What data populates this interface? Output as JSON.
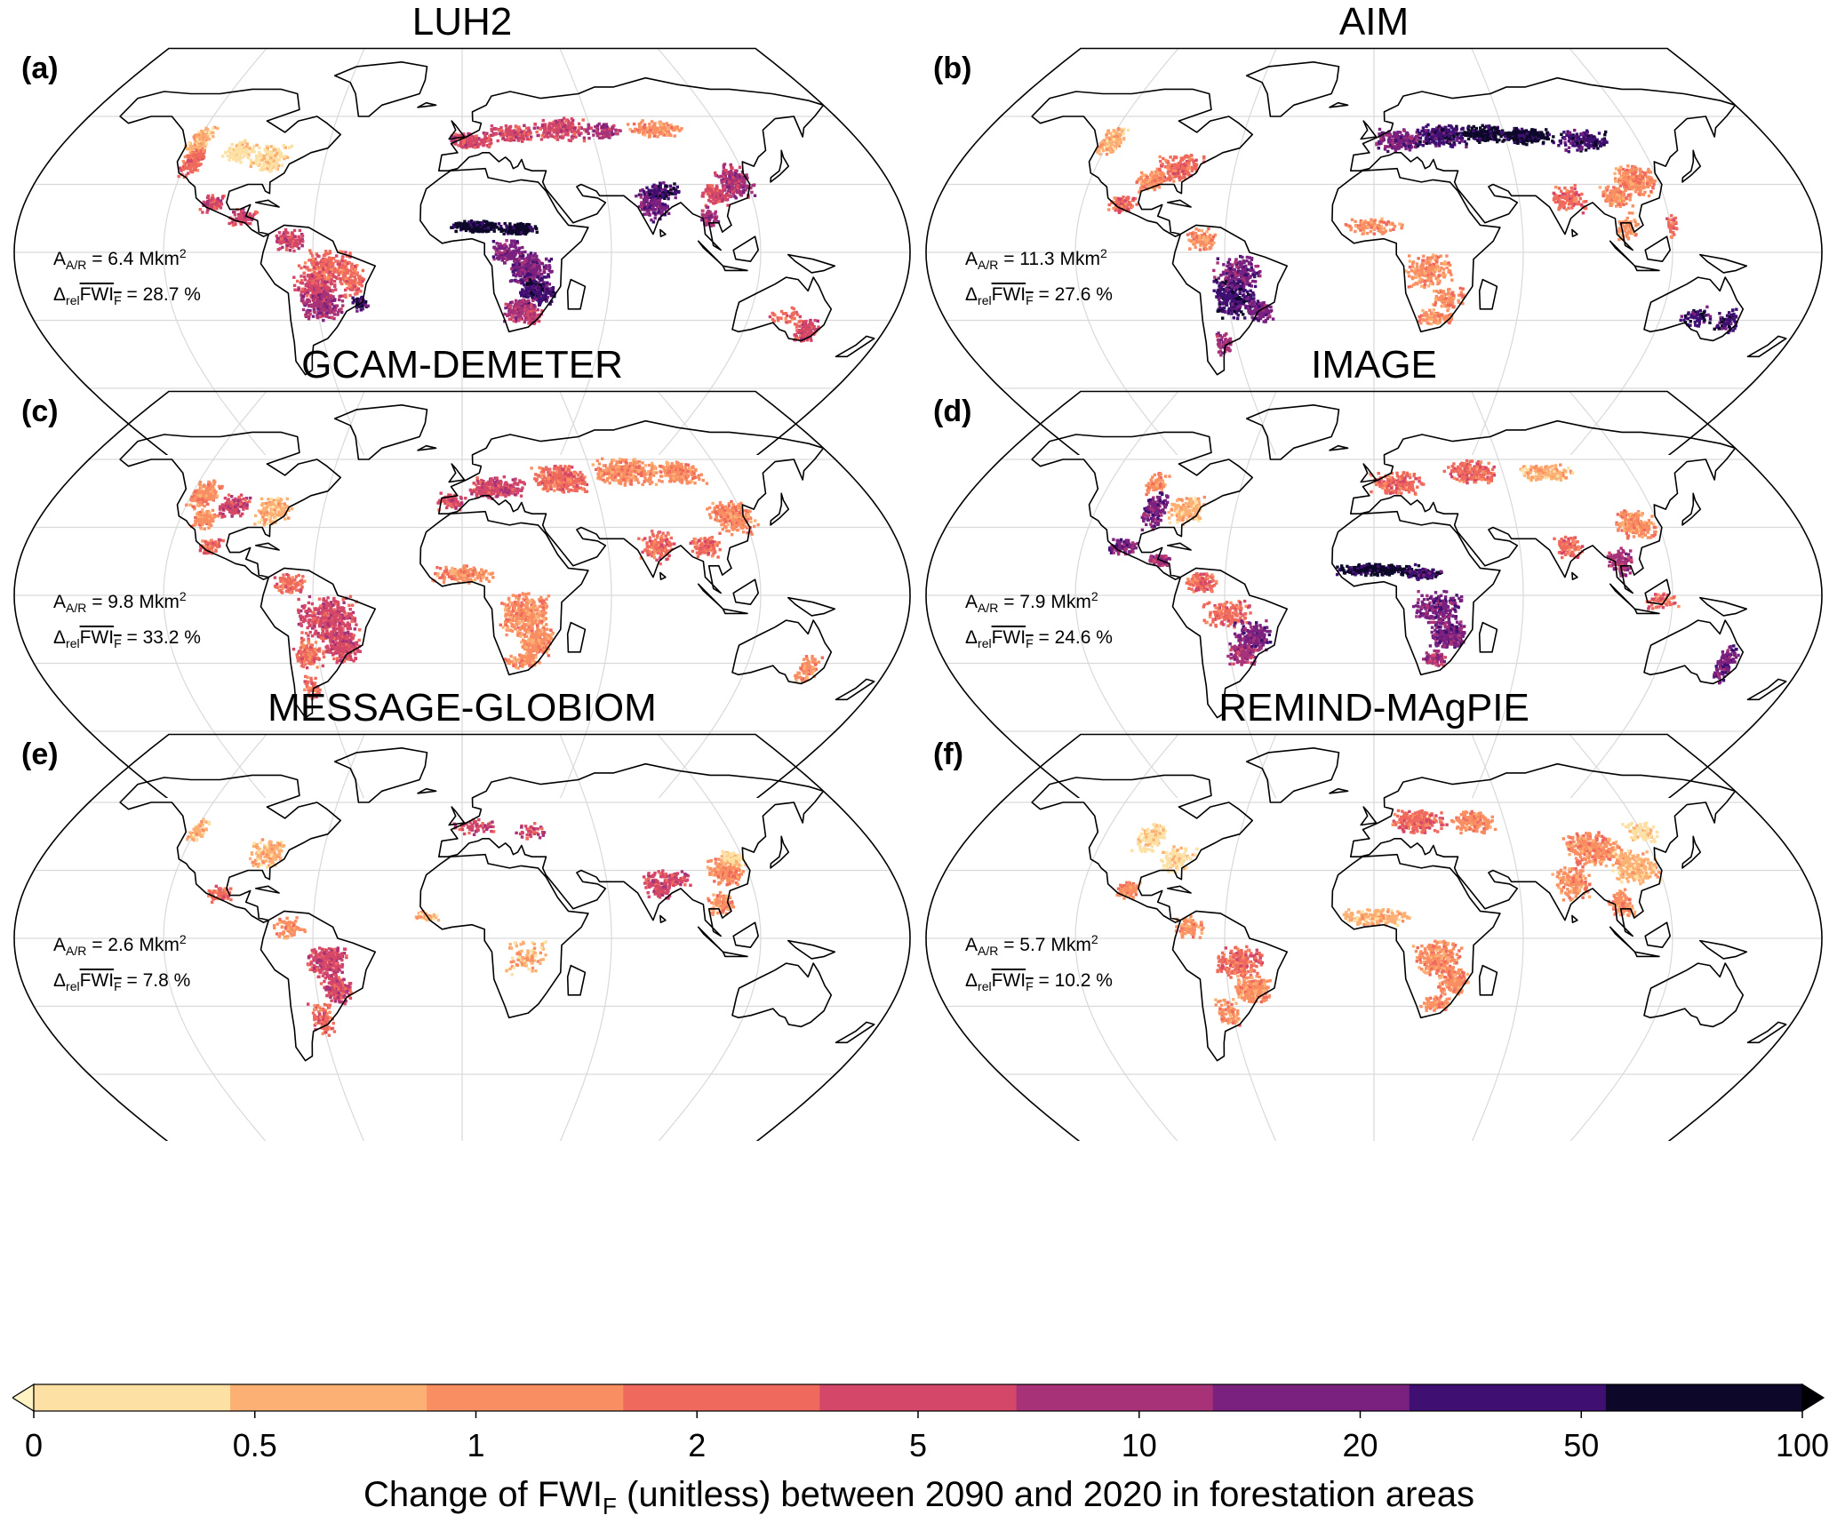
{
  "panels": [
    {
      "id": "a",
      "letter": "(a)",
      "title": "LUH2",
      "area": "6.4",
      "fwi": "28.7"
    },
    {
      "id": "b",
      "letter": "(b)",
      "title": "AIM",
      "area": "11.3",
      "fwi": "27.6"
    },
    {
      "id": "c",
      "letter": "(c)",
      "title": "GCAM-DEMETER",
      "area": "9.8",
      "fwi": "33.2"
    },
    {
      "id": "d",
      "letter": "(d)",
      "title": "IMAGE",
      "area": "7.9",
      "fwi": "24.6"
    },
    {
      "id": "e",
      "letter": "(e)",
      "title": "MESSAGE-GLOBIOM",
      "area": "2.6",
      "fwi": "7.8"
    },
    {
      "id": "f",
      "letter": "(f)",
      "title": "REMIND-MAgPIE",
      "area": "5.7",
      "fwi": "10.2"
    }
  ],
  "stat_text": {
    "area_symbol": "A",
    "area_sub": "A/R",
    "area_unit": "Mkm",
    "area_unit_sup": "2",
    "fwi_delta": "Δ",
    "fwi_sub_rel": "rel",
    "fwi_symbol": "FWI",
    "fwi_sub": "F",
    "fwi_unit": "%"
  },
  "colorbar": {
    "ticks": [
      "0",
      "0.5",
      "1",
      "2",
      "5",
      "10",
      "20",
      "50",
      "100"
    ],
    "colors": [
      "#fde0a3",
      "#fcb074",
      "#f98e62",
      "#ef6a5c",
      "#d44768",
      "#a83277",
      "#7a2180",
      "#3f0f72",
      "#0d0829"
    ],
    "extend_low_color": "#fff3c4",
    "extend_high_color": "#000004",
    "title_pre": "Change of FWI",
    "title_sub": "F",
    "title_post": " (unitless) between 2090 and 2020 in forestation areas"
  }
}
